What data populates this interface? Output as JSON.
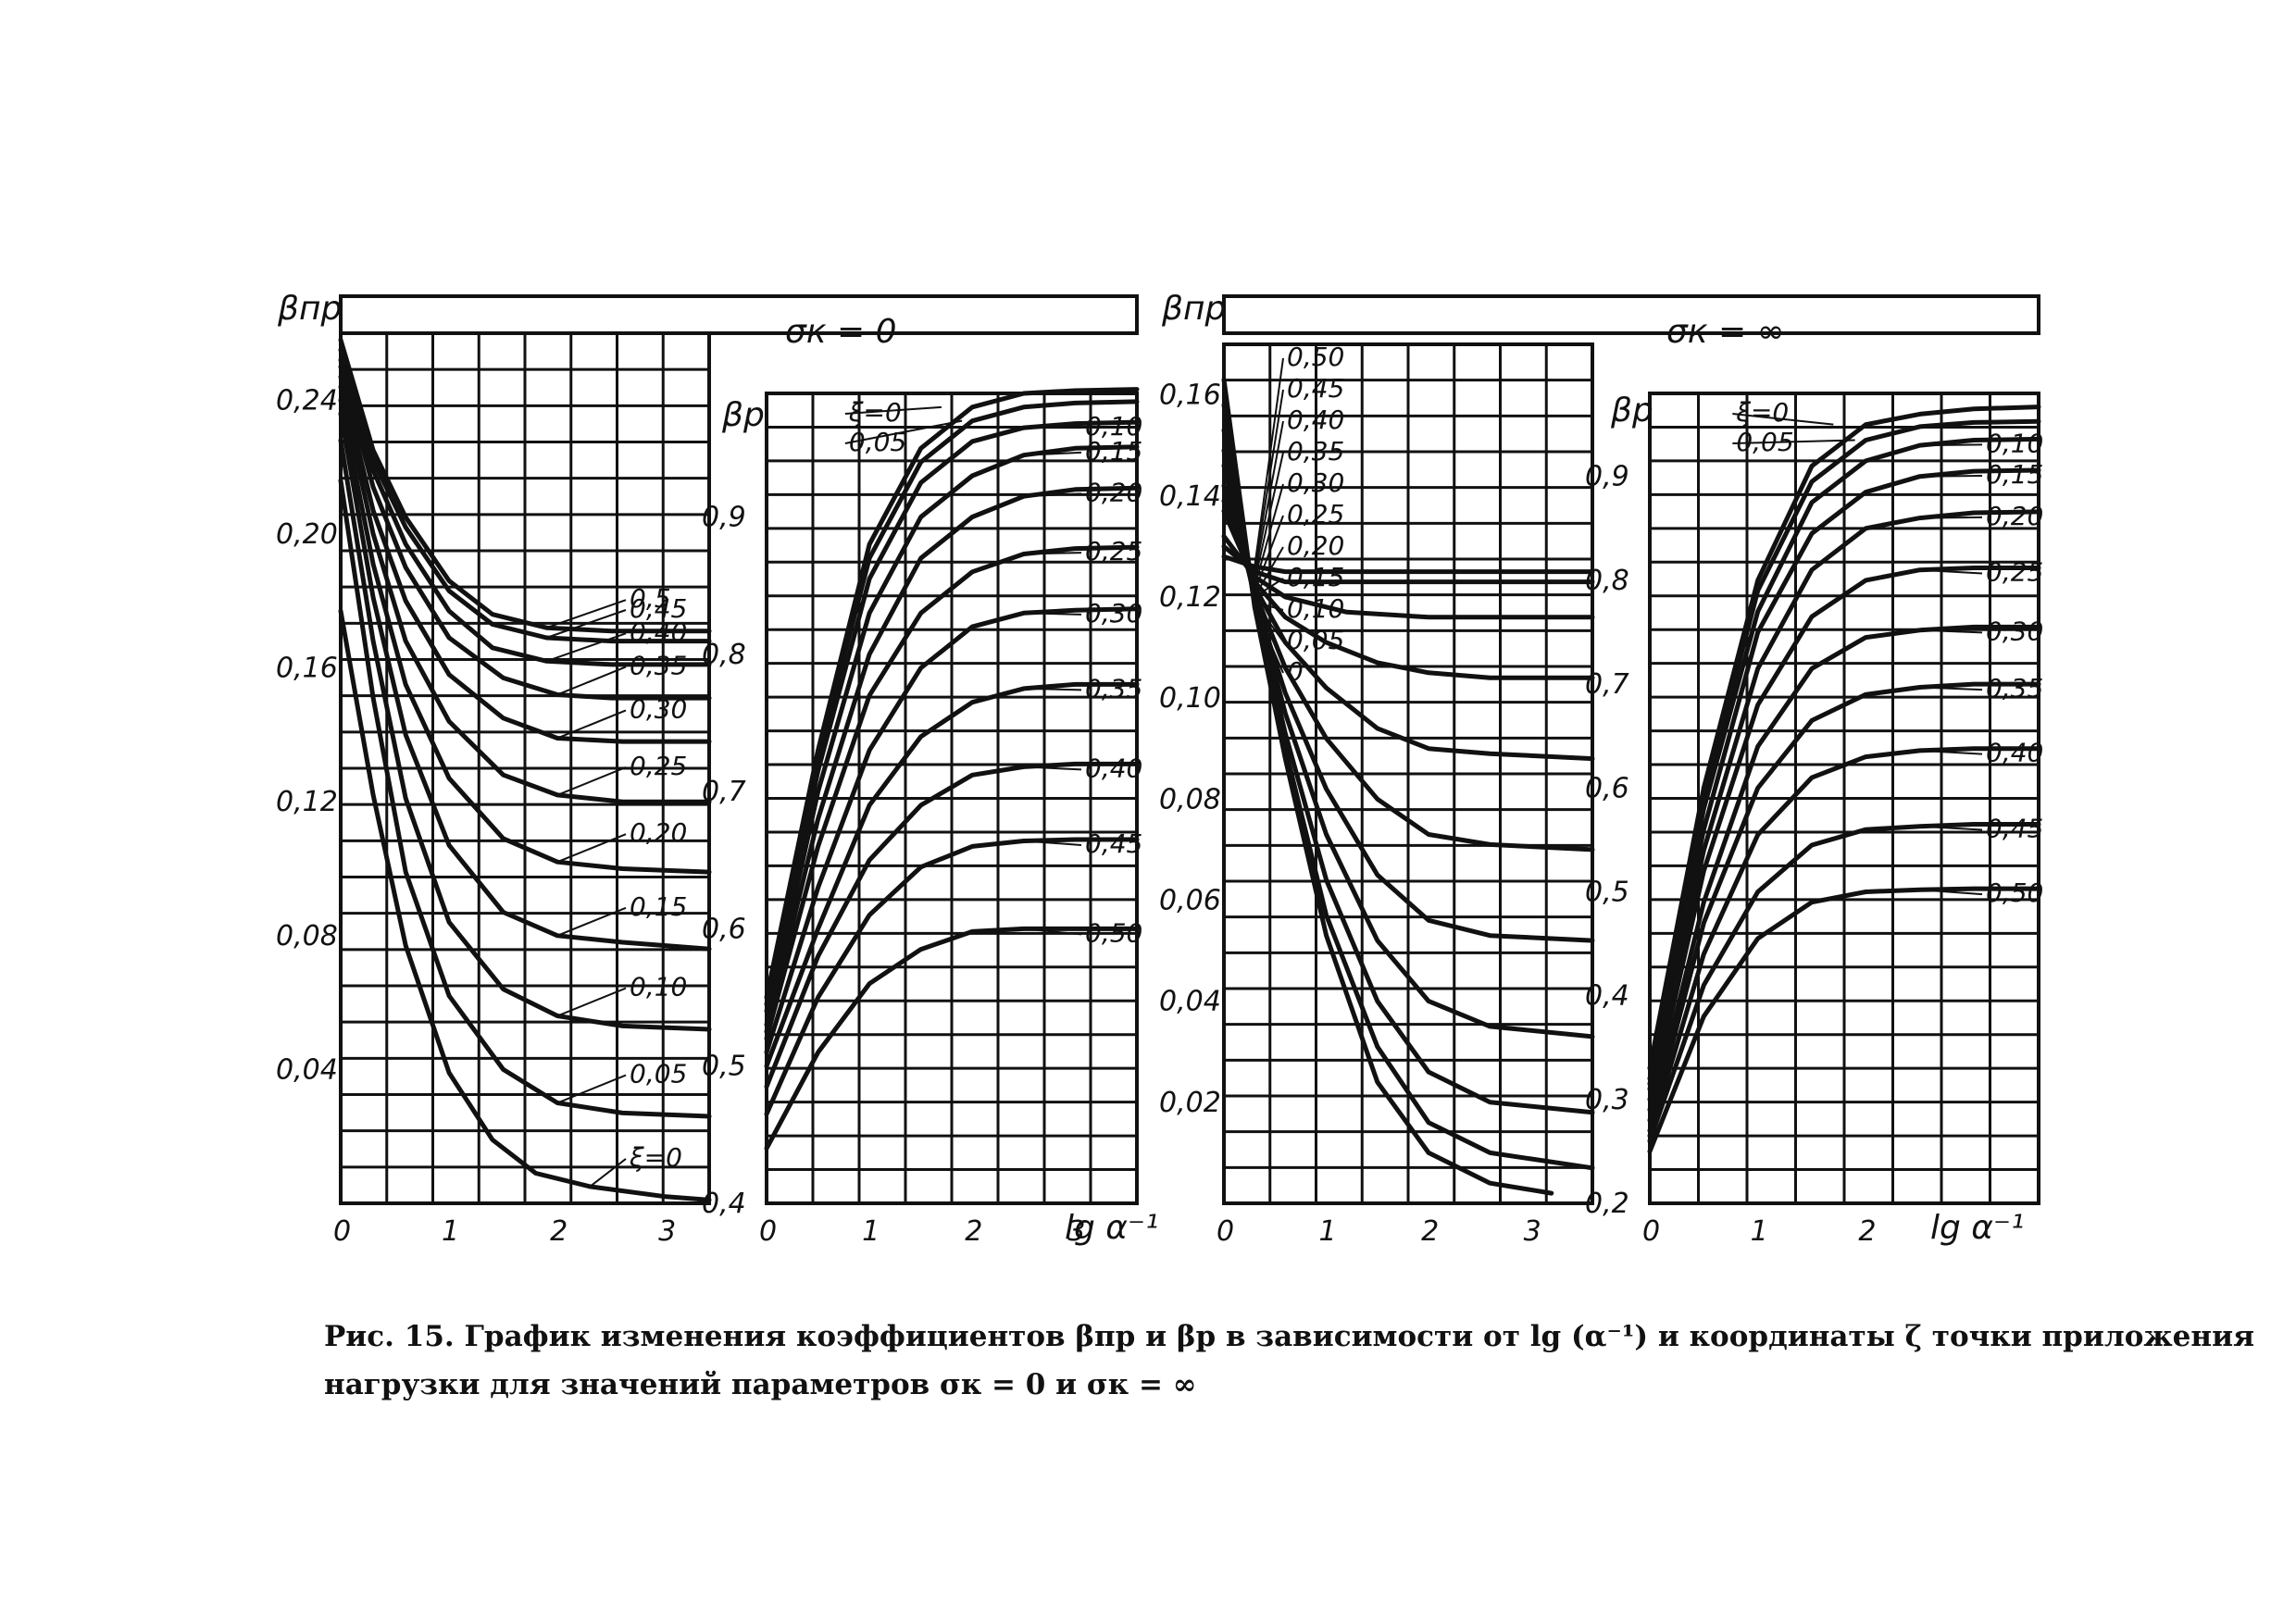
{
  "caption": {
    "line1": "Рис. 15. График изменения коэффициентов βпр и βр в зависимости от lg (α⁻¹) и координаты ζ точки приложения",
    "line2": "нагрузки для значений параметров σк = 0 и σк = ∞"
  },
  "chart_data": [
    {
      "type": "line",
      "id": "beta_pr_sigma0",
      "ylabel": "βпр",
      "x_ticks": [
        "0",
        "1",
        "2",
        "3"
      ],
      "xlim": [
        0,
        3.4
      ],
      "ylim": [
        0.0,
        0.26
      ],
      "y_ticks": [
        "0,04",
        "0,08",
        "0,12",
        "0,16",
        "0,20",
        "0,24"
      ],
      "y_tick_values": [
        0.04,
        0.08,
        0.12,
        0.16,
        0.2,
        0.24
      ],
      "grid": true,
      "series": [
        {
          "name": "0,5",
          "x": [
            0,
            0.3,
            0.6,
            1.0,
            1.4,
            1.9,
            2.5,
            3.4
          ],
          "y": [
            0.258,
            0.225,
            0.205,
            0.186,
            0.176,
            0.172,
            0.171,
            0.171
          ]
        },
        {
          "name": "0,45",
          "x": [
            0,
            0.3,
            0.6,
            1.0,
            1.4,
            1.9,
            2.5,
            3.4
          ],
          "y": [
            0.255,
            0.222,
            0.202,
            0.183,
            0.173,
            0.169,
            0.168,
            0.168
          ]
        },
        {
          "name": "0,40",
          "x": [
            0,
            0.3,
            0.6,
            1.0,
            1.4,
            1.9,
            2.5,
            3.4
          ],
          "y": [
            0.252,
            0.219,
            0.197,
            0.177,
            0.166,
            0.162,
            0.161,
            0.161
          ]
        },
        {
          "name": "0,35",
          "x": [
            0,
            0.3,
            0.6,
            1.0,
            1.5,
            2.0,
            2.5,
            3.4
          ],
          "y": [
            0.25,
            0.214,
            0.19,
            0.169,
            0.157,
            0.152,
            0.151,
            0.151
          ]
        },
        {
          "name": "0,30",
          "x": [
            0,
            0.3,
            0.6,
            1.0,
            1.5,
            2.0,
            2.6,
            3.4
          ],
          "y": [
            0.247,
            0.207,
            0.18,
            0.158,
            0.145,
            0.139,
            0.138,
            0.138
          ]
        },
        {
          "name": "0,25",
          "x": [
            0,
            0.3,
            0.6,
            1.0,
            1.5,
            2.0,
            2.6,
            3.4
          ],
          "y": [
            0.244,
            0.2,
            0.168,
            0.144,
            0.128,
            0.122,
            0.12,
            0.12
          ]
        },
        {
          "name": "0,20",
          "x": [
            0,
            0.3,
            0.6,
            1.0,
            1.5,
            2.0,
            2.6,
            3.4
          ],
          "y": [
            0.24,
            0.191,
            0.155,
            0.127,
            0.109,
            0.102,
            0.1,
            0.099
          ]
        },
        {
          "name": "0,15",
          "x": [
            0,
            0.3,
            0.6,
            1.0,
            1.5,
            2.0,
            2.6,
            3.4
          ],
          "y": [
            0.236,
            0.181,
            0.14,
            0.107,
            0.087,
            0.08,
            0.078,
            0.076
          ]
        },
        {
          "name": "0,10",
          "x": [
            0,
            0.3,
            0.6,
            1.0,
            1.5,
            2.0,
            2.6,
            3.4
          ],
          "y": [
            0.228,
            0.168,
            0.121,
            0.084,
            0.064,
            0.056,
            0.053,
            0.052
          ]
        },
        {
          "name": "0,05",
          "x": [
            0,
            0.3,
            0.6,
            1.0,
            1.5,
            2.0,
            2.6,
            3.4
          ],
          "y": [
            0.216,
            0.151,
            0.099,
            0.062,
            0.04,
            0.03,
            0.027,
            0.026
          ]
        },
        {
          "name": "ξ=0",
          "x": [
            0,
            0.3,
            0.6,
            1.0,
            1.4,
            1.8,
            2.3,
            3.0,
            3.4
          ],
          "y": [
            0.177,
            0.122,
            0.077,
            0.039,
            0.019,
            0.009,
            0.005,
            0.002,
            0.001
          ]
        }
      ]
    },
    {
      "type": "line",
      "id": "beta_p_sigma0",
      "title": "σк = 0",
      "ylabel": "βр",
      "xlabel": "lg α⁻¹",
      "x_ticks": [
        "0",
        "1",
        "2",
        "3"
      ],
      "xlim": [
        0,
        3.6
      ],
      "ylim": [
        0.4,
        0.99
      ],
      "y_ticks": [
        "0,4",
        "0,5",
        "0,6",
        "0,7",
        "0,8",
        "0,9"
      ],
      "y_tick_values": [
        0.4,
        0.5,
        0.6,
        0.7,
        0.8,
        0.9
      ],
      "grid": true,
      "series": [
        {
          "name": "ξ=0",
          "x": [
            0,
            0.5,
            1.0,
            1.5,
            2.0,
            2.5,
            3.0,
            3.6
          ],
          "y": [
            0.55,
            0.73,
            0.88,
            0.95,
            0.98,
            0.99,
            0.992,
            0.993
          ]
        },
        {
          "name": "0,05",
          "x": [
            0,
            0.5,
            1.0,
            1.5,
            2.0,
            2.5,
            3.0,
            3.6
          ],
          "y": [
            0.545,
            0.725,
            0.87,
            0.94,
            0.97,
            0.98,
            0.983,
            0.984
          ]
        },
        {
          "name": "0,10",
          "x": [
            0,
            0.5,
            1.0,
            1.5,
            2.0,
            2.5,
            3.0,
            3.6
          ],
          "y": [
            0.54,
            0.715,
            0.855,
            0.925,
            0.955,
            0.965,
            0.968,
            0.969
          ]
        },
        {
          "name": "0,15",
          "x": [
            0,
            0.5,
            1.0,
            1.5,
            2.0,
            2.5,
            3.0,
            3.6
          ],
          "y": [
            0.53,
            0.7,
            0.83,
            0.9,
            0.93,
            0.945,
            0.95,
            0.951
          ]
        },
        {
          "name": "0,20",
          "x": [
            0,
            0.5,
            1.0,
            1.5,
            2.0,
            2.5,
            3.0,
            3.6
          ],
          "y": [
            0.525,
            0.68,
            0.8,
            0.87,
            0.9,
            0.915,
            0.92,
            0.921
          ]
        },
        {
          "name": "0,25",
          "x": [
            0,
            0.5,
            1.0,
            1.5,
            2.0,
            2.5,
            3.0,
            3.6
          ],
          "y": [
            0.52,
            0.66,
            0.77,
            0.83,
            0.86,
            0.873,
            0.877,
            0.878
          ]
        },
        {
          "name": "0,30",
          "x": [
            0,
            0.5,
            1.0,
            1.5,
            2.0,
            2.5,
            3.0,
            3.6
          ],
          "y": [
            0.51,
            0.63,
            0.73,
            0.79,
            0.82,
            0.83,
            0.832,
            0.833
          ]
        },
        {
          "name": "0,35",
          "x": [
            0,
            0.5,
            1.0,
            1.5,
            2.0,
            2.5,
            3.0,
            3.6
          ],
          "y": [
            0.5,
            0.6,
            0.69,
            0.74,
            0.765,
            0.775,
            0.778,
            0.778
          ]
        },
        {
          "name": "0,40",
          "x": [
            0,
            0.5,
            1.0,
            1.5,
            2.0,
            2.5,
            3.0,
            3.6
          ],
          "y": [
            0.485,
            0.58,
            0.65,
            0.69,
            0.712,
            0.718,
            0.72,
            0.72
          ]
        },
        {
          "name": "0,45",
          "x": [
            0,
            0.5,
            1.0,
            1.5,
            2.0,
            2.5,
            3.0,
            3.6
          ],
          "y": [
            0.465,
            0.55,
            0.61,
            0.645,
            0.66,
            0.664,
            0.665,
            0.665
          ]
        },
        {
          "name": "0,50",
          "x": [
            0,
            0.5,
            1.0,
            1.5,
            2.0,
            2.5,
            3.0,
            3.6
          ],
          "y": [
            0.44,
            0.51,
            0.56,
            0.585,
            0.598,
            0.6,
            0.6,
            0.6
          ]
        }
      ]
    },
    {
      "type": "line",
      "id": "beta_pr_sigma_inf",
      "ylabel": "βпр",
      "x_ticks": [
        "0",
        "1",
        "2",
        "3"
      ],
      "xlim": [
        0,
        3.6
      ],
      "ylim": [
        0.0,
        0.17
      ],
      "y_ticks": [
        "0,02",
        "0,04",
        "0,06",
        "0,08",
        "0,10",
        "0,12",
        "0,14",
        "0,16"
      ],
      "y_tick_values": [
        0.02,
        0.04,
        0.06,
        0.08,
        0.1,
        0.12,
        0.14,
        0.16
      ],
      "grid": true,
      "series": [
        {
          "name": "0,50",
          "x": [
            0,
            0.3,
            0.6,
            1.2,
            2.0,
            3.6
          ],
          "y": [
            0.128,
            0.126,
            0.125,
            0.125,
            0.125,
            0.125
          ]
        },
        {
          "name": "0,45",
          "x": [
            0,
            0.3,
            0.6,
            1.2,
            2.0,
            3.6
          ],
          "y": [
            0.13,
            0.125,
            0.123,
            0.123,
            0.123,
            0.123
          ]
        },
        {
          "name": "0,40",
          "x": [
            0,
            0.3,
            0.6,
            1.2,
            2.0,
            3.6
          ],
          "y": [
            0.132,
            0.124,
            0.12,
            0.117,
            0.116,
            0.116
          ]
        },
        {
          "name": "0,35",
          "x": [
            0,
            0.3,
            0.6,
            1.0,
            1.5,
            2.0,
            2.6,
            3.6
          ],
          "y": [
            0.137,
            0.123,
            0.116,
            0.111,
            0.107,
            0.105,
            0.104,
            0.104
          ]
        },
        {
          "name": "0,30",
          "x": [
            0,
            0.3,
            0.6,
            1.0,
            1.5,
            2.0,
            2.6,
            3.6
          ],
          "y": [
            0.139,
            0.122,
            0.111,
            0.102,
            0.094,
            0.09,
            0.089,
            0.088
          ]
        },
        {
          "name": "0,25",
          "x": [
            0,
            0.3,
            0.6,
            1.0,
            1.5,
            2.0,
            2.6,
            3.6
          ],
          "y": [
            0.142,
            0.121,
            0.106,
            0.092,
            0.08,
            0.073,
            0.071,
            0.07
          ]
        },
        {
          "name": "0,20",
          "x": [
            0,
            0.3,
            0.6,
            1.0,
            1.5,
            2.0,
            2.6,
            3.6
          ],
          "y": [
            0.146,
            0.12,
            0.101,
            0.082,
            0.065,
            0.056,
            0.053,
            0.052
          ]
        },
        {
          "name": "0,15",
          "x": [
            0,
            0.3,
            0.6,
            1.0,
            1.5,
            2.0,
            2.6,
            3.6
          ],
          "y": [
            0.149,
            0.12,
            0.097,
            0.073,
            0.052,
            0.04,
            0.035,
            0.033
          ]
        },
        {
          "name": "0,10",
          "x": [
            0,
            0.3,
            0.6,
            1.0,
            1.5,
            2.0,
            2.6,
            3.6
          ],
          "y": [
            0.153,
            0.119,
            0.093,
            0.064,
            0.04,
            0.026,
            0.02,
            0.018
          ]
        },
        {
          "name": "0,05",
          "x": [
            0,
            0.3,
            0.6,
            1.0,
            1.5,
            2.0,
            2.6,
            3.6
          ],
          "y": [
            0.158,
            0.119,
            0.09,
            0.057,
            0.031,
            0.016,
            0.01,
            0.007
          ]
        },
        {
          "name": "0",
          "x": [
            0,
            0.3,
            0.6,
            1.0,
            1.5,
            2.0,
            2.6,
            3.2
          ],
          "y": [
            0.163,
            0.118,
            0.088,
            0.053,
            0.024,
            0.01,
            0.004,
            0.002
          ]
        }
      ]
    },
    {
      "type": "line",
      "id": "beta_p_sigma_inf",
      "title": "σк = ∞",
      "ylabel": "βр",
      "xlabel": "lg α⁻¹",
      "x_ticks": [
        "0",
        "1",
        "2"
      ],
      "xlim": [
        0,
        3.6
      ],
      "ylim": [
        0.2,
        0.98
      ],
      "y_ticks": [
        "0,2",
        "0,3",
        "0,4",
        "0,5",
        "0,6",
        "0,7",
        "0,8",
        "0,9"
      ],
      "y_tick_values": [
        0.2,
        0.3,
        0.4,
        0.5,
        0.6,
        0.7,
        0.8,
        0.9
      ],
      "grid": true,
      "series": [
        {
          "name": "ξ=0",
          "x": [
            0,
            0.5,
            1.0,
            1.5,
            2.0,
            2.5,
            3.0,
            3.6
          ],
          "y": [
            0.33,
            0.6,
            0.8,
            0.91,
            0.95,
            0.96,
            0.965,
            0.967
          ]
        },
        {
          "name": "0,05",
          "x": [
            0,
            0.5,
            1.0,
            1.5,
            2.0,
            2.5,
            3.0,
            3.6
          ],
          "y": [
            0.32,
            0.59,
            0.79,
            0.895,
            0.935,
            0.948,
            0.952,
            0.953
          ]
        },
        {
          "name": "0,10",
          "x": [
            0,
            0.5,
            1.0,
            1.5,
            2.0,
            2.5,
            3.0,
            3.6
          ],
          "y": [
            0.315,
            0.58,
            0.77,
            0.875,
            0.915,
            0.93,
            0.935,
            0.936
          ]
        },
        {
          "name": "0,15",
          "x": [
            0,
            0.5,
            1.0,
            1.5,
            2.0,
            2.5,
            3.0,
            3.6
          ],
          "y": [
            0.31,
            0.56,
            0.75,
            0.845,
            0.885,
            0.9,
            0.905,
            0.906
          ]
        },
        {
          "name": "0,20",
          "x": [
            0,
            0.5,
            1.0,
            1.5,
            2.0,
            2.5,
            3.0,
            3.6
          ],
          "y": [
            0.3,
            0.54,
            0.715,
            0.81,
            0.85,
            0.86,
            0.865,
            0.866
          ]
        },
        {
          "name": "0,25",
          "x": [
            0,
            0.5,
            1.0,
            1.5,
            2.0,
            2.5,
            3.0,
            3.6
          ],
          "y": [
            0.29,
            0.52,
            0.68,
            0.765,
            0.8,
            0.81,
            0.812,
            0.812
          ]
        },
        {
          "name": "0,30",
          "x": [
            0,
            0.5,
            1.0,
            1.5,
            2.0,
            2.5,
            3.0,
            3.6
          ],
          "y": [
            0.28,
            0.49,
            0.64,
            0.715,
            0.745,
            0.752,
            0.755,
            0.755
          ]
        },
        {
          "name": "0,35",
          "x": [
            0,
            0.5,
            1.0,
            1.5,
            2.0,
            2.5,
            3.0,
            3.6
          ],
          "y": [
            0.27,
            0.47,
            0.6,
            0.665,
            0.69,
            0.697,
            0.7,
            0.7
          ]
        },
        {
          "name": "0,40",
          "x": [
            0,
            0.5,
            1.0,
            1.5,
            2.0,
            2.5,
            3.0,
            3.6
          ],
          "y": [
            0.265,
            0.44,
            0.555,
            0.61,
            0.63,
            0.636,
            0.638,
            0.638
          ]
        },
        {
          "name": "0,45",
          "x": [
            0,
            0.5,
            1.0,
            1.5,
            2.0,
            2.5,
            3.0,
            3.6
          ],
          "y": [
            0.26,
            0.41,
            0.5,
            0.545,
            0.56,
            0.563,
            0.565,
            0.565
          ]
        },
        {
          "name": "0,50",
          "x": [
            0,
            0.5,
            1.0,
            1.5,
            2.0,
            2.5,
            3.0,
            3.6
          ],
          "y": [
            0.25,
            0.38,
            0.455,
            0.49,
            0.5,
            0.502,
            0.503,
            0.503
          ]
        }
      ]
    }
  ]
}
